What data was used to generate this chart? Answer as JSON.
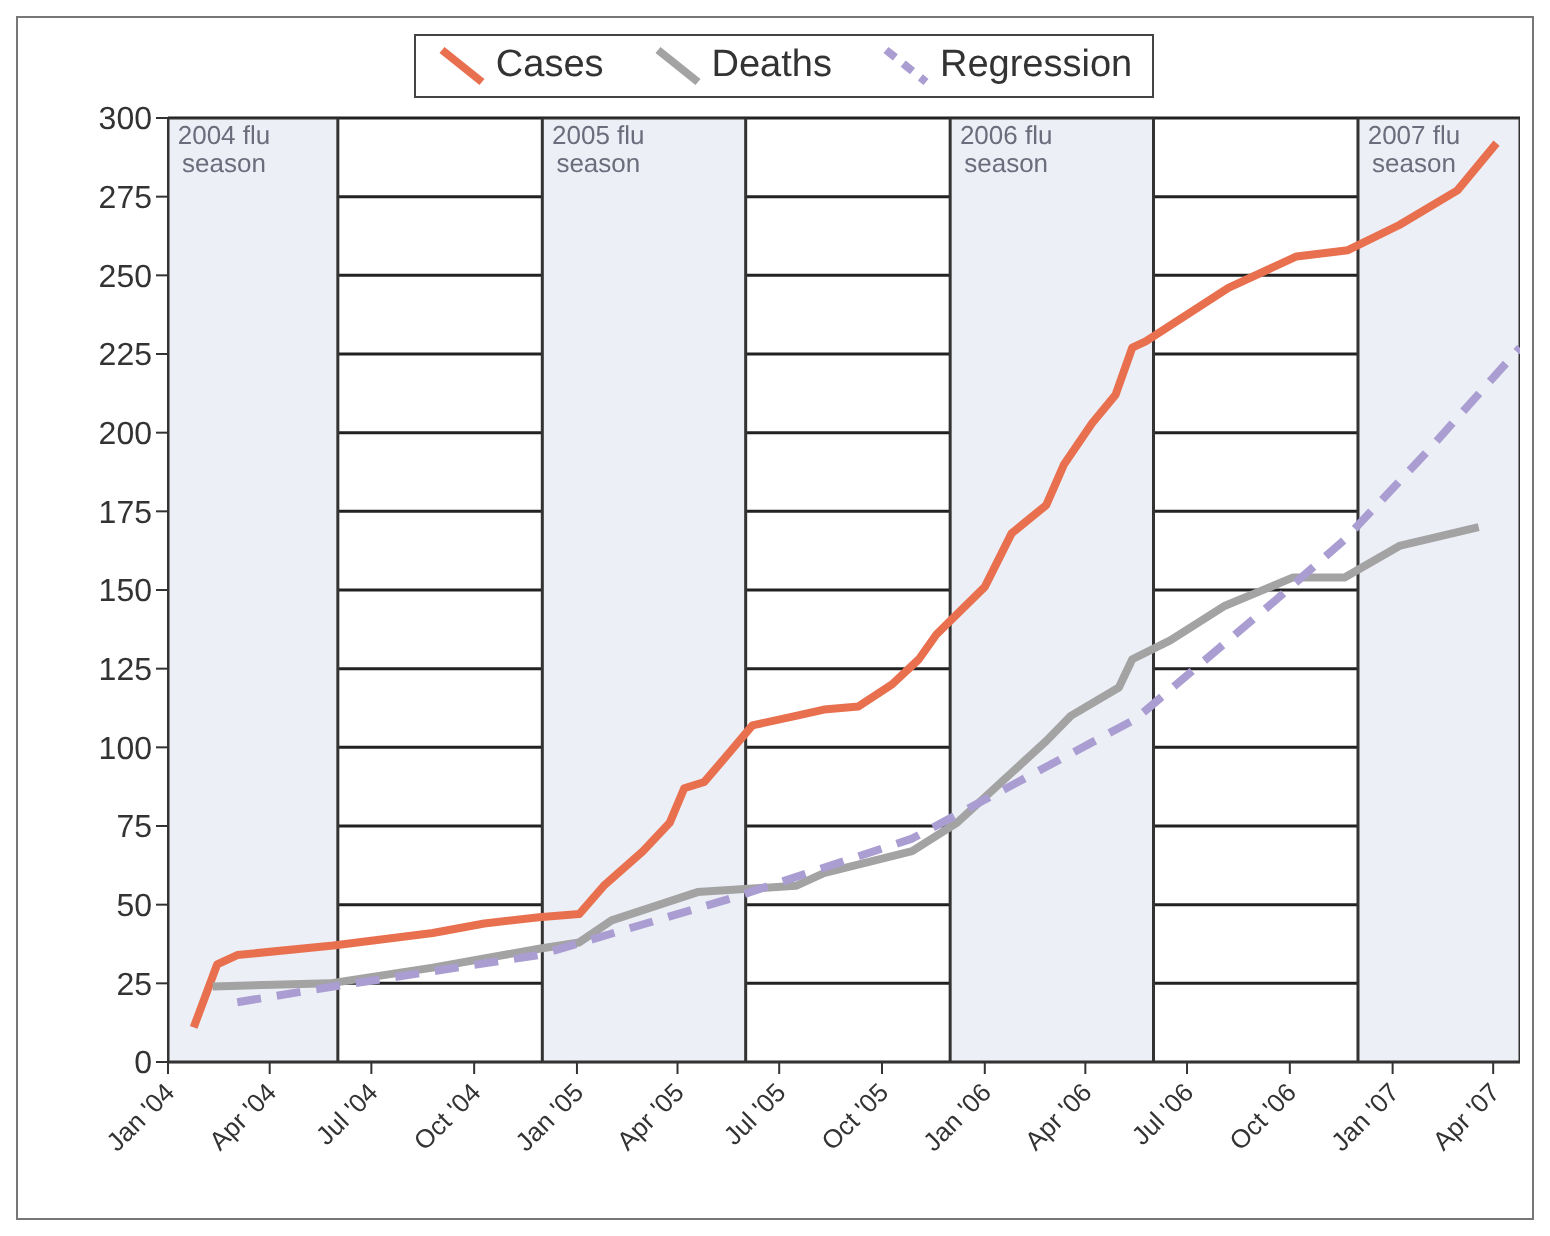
{
  "chart_data": {
    "type": "line",
    "legend": "top",
    "grid": "y",
    "ylim": [
      0,
      300
    ],
    "yticks": [
      0,
      25,
      50,
      75,
      100,
      125,
      150,
      175,
      200,
      225,
      250,
      275,
      300
    ],
    "xlim": [
      "2004-01-01",
      "2007-04-25"
    ],
    "xticks": [
      {
        "value": "2004-01-01",
        "label": "Jan '04"
      },
      {
        "value": "2004-04-01",
        "label": "Apr '04"
      },
      {
        "value": "2004-07-01",
        "label": "Jul '04"
      },
      {
        "value": "2004-10-01",
        "label": "Oct '04"
      },
      {
        "value": "2005-01-01",
        "label": "Jan '05"
      },
      {
        "value": "2005-04-01",
        "label": "Apr '05"
      },
      {
        "value": "2005-07-01",
        "label": "Jul '05"
      },
      {
        "value": "2005-10-01",
        "label": "Oct '05"
      },
      {
        "value": "2006-01-01",
        "label": "Jan '06"
      },
      {
        "value": "2006-04-01",
        "label": "Apr '06"
      },
      {
        "value": "2006-07-01",
        "label": "Jul '06"
      },
      {
        "value": "2006-10-01",
        "label": "Oct '06"
      },
      {
        "value": "2007-01-01",
        "label": "Jan '07"
      },
      {
        "value": "2007-04-01",
        "label": "Apr '07"
      }
    ],
    "bands": [
      {
        "axis": "x",
        "from": "2004-01-01",
        "to": "2004-06-01",
        "label": "2004 flu season",
        "color": "#eceff6"
      },
      {
        "axis": "x",
        "from": "2004-12-01",
        "to": "2005-06-01",
        "label": "2005 flu season",
        "color": "#eceff6"
      },
      {
        "axis": "x",
        "from": "2005-12-01",
        "to": "2006-06-01",
        "label": "2006 flu season",
        "color": "#eceff6"
      },
      {
        "axis": "x",
        "from": "2006-12-01",
        "to": "2007-04-25",
        "label": "2007 flu season",
        "color": "#eceff6"
      }
    ],
    "series": [
      {
        "name": "Cases",
        "color": "#e8704f",
        "line_style": "solid",
        "x": [
          "2004-01-24",
          "2004-02-14",
          "2004-03-03",
          "2004-05-28",
          "2004-08-25",
          "2004-10-10",
          "2004-11-28",
          "2005-01-03",
          "2005-01-25",
          "2005-03-01",
          "2005-03-25",
          "2005-04-07",
          "2005-04-25",
          "2005-05-19",
          "2005-06-07",
          "2005-07-16",
          "2005-08-10",
          "2005-09-10",
          "2005-10-10",
          "2005-11-03",
          "2005-11-19",
          "2006-01-01",
          "2006-01-25",
          "2006-02-25",
          "2006-03-13",
          "2006-04-07",
          "2006-04-28",
          "2006-05-13",
          "2006-05-25",
          "2006-08-07",
          "2006-10-07",
          "2006-11-22",
          "2007-01-07",
          "2007-02-28",
          "2007-04-04"
        ],
        "values": [
          11,
          31,
          34,
          37,
          41,
          44,
          46,
          47,
          56,
          67,
          76,
          87,
          89,
          99,
          107,
          110,
          112,
          113,
          120,
          128,
          136,
          151,
          168,
          177,
          190,
          203,
          212,
          227,
          229,
          246,
          256,
          258,
          266,
          277,
          292
        ]
      },
      {
        "name": "Deaths",
        "color": "#a3a3a3",
        "line_style": "solid",
        "x": [
          "2004-02-10",
          "2004-05-25",
          "2004-08-25",
          "2004-11-28",
          "2005-01-03",
          "2005-02-01",
          "2005-04-19",
          "2005-07-16",
          "2005-08-10",
          "2005-10-28",
          "2005-12-07",
          "2006-02-25",
          "2006-03-19",
          "2006-05-01",
          "2006-05-13",
          "2006-06-16",
          "2006-08-04",
          "2006-10-04",
          "2006-11-19",
          "2007-01-07",
          "2007-03-19"
        ],
        "values": [
          24,
          25,
          30,
          36,
          38,
          45,
          54,
          56,
          60,
          67,
          76,
          102,
          110,
          119,
          128,
          134,
          145,
          154,
          154,
          164,
          170
        ]
      },
      {
        "name": "Regression",
        "color": "#aa9dd2",
        "line_style": "dashed",
        "x": [
          "2004-03-03",
          "2004-05-28",
          "2004-11-28",
          "2005-05-19",
          "2005-10-28",
          "2006-05-16",
          "2006-09-19",
          "2006-11-19",
          "2007-02-01",
          "2007-04-25"
        ],
        "values": [
          19,
          24,
          34,
          52,
          71,
          109,
          147,
          166,
          194,
          227
        ]
      }
    ]
  }
}
